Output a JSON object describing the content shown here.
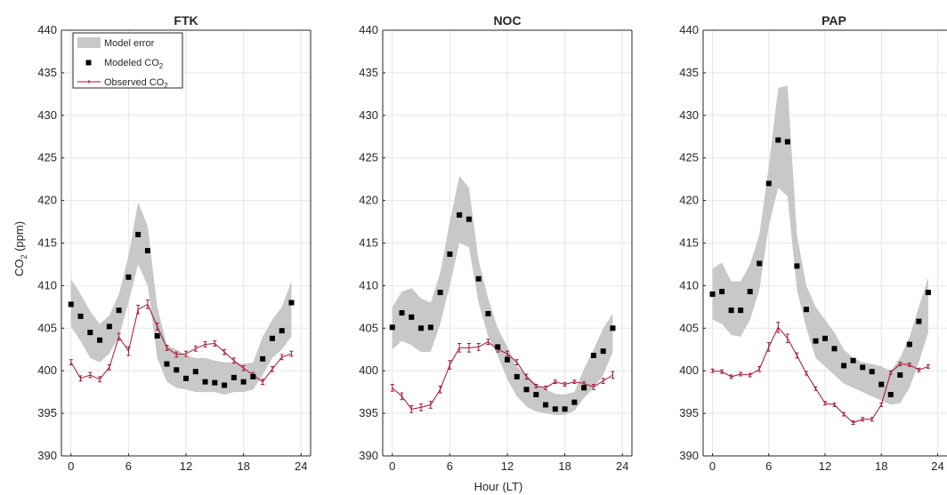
{
  "figure": {
    "ylabel": "CO",
    "ylabel_sub": "2",
    "ylabel_unit": " (ppm)",
    "xlabel": "Hour (LT)"
  },
  "legend": {
    "model_error": "Model error",
    "modeled_prefix": "Modeled CO",
    "modeled_sub": "2",
    "observed_prefix": "Observed CO",
    "observed_sub": "2",
    "placement": "top-left of first panel"
  },
  "colors": {
    "band": "#c8c8c8",
    "modeled": "#000000",
    "observed": "#a2142f",
    "grid": "#e6e6e6",
    "axis": "#262626"
  },
  "chart_data": [
    {
      "type": "line",
      "title": "FTK",
      "xlim": [
        -1,
        25
      ],
      "ylim": [
        390,
        440
      ],
      "xticks": [
        0,
        6,
        12,
        18,
        24
      ],
      "yticks": [
        390,
        395,
        400,
        405,
        410,
        415,
        420,
        425,
        430,
        435,
        440
      ],
      "grid": true,
      "x": [
        0,
        1,
        2,
        3,
        4,
        5,
        6,
        7,
        8,
        9,
        10,
        11,
        12,
        13,
        14,
        15,
        16,
        17,
        18,
        19,
        20,
        21,
        22,
        23
      ],
      "series": [
        {
          "name": "Model error",
          "kind": "band",
          "lower": [
            405.2,
            403.5,
            401.5,
            401.0,
            402.0,
            404.0,
            408.0,
            412.5,
            410.0,
            401.5,
            398.7,
            398.0,
            397.8,
            397.5,
            397.5,
            397.5,
            397.2,
            397.5,
            397.5,
            397.8,
            399.5,
            401.5,
            402.5,
            404.0
          ],
          "upper": [
            410.8,
            409.0,
            407.0,
            405.5,
            406.5,
            409.0,
            413.5,
            419.8,
            417.0,
            407.5,
            403.0,
            402.5,
            401.8,
            401.5,
            401.5,
            401.2,
            401.0,
            401.0,
            400.8,
            401.0,
            404.0,
            406.0,
            407.5,
            410.5
          ]
        },
        {
          "name": "Modeled CO2",
          "kind": "markers",
          "values": [
            407.8,
            406.4,
            404.5,
            403.6,
            405.2,
            407.1,
            411.0,
            416.0,
            414.1,
            404.1,
            400.8,
            400.1,
            399.1,
            399.9,
            398.7,
            398.6,
            398.3,
            399.2,
            398.7,
            399.3,
            401.4,
            403.8,
            404.7,
            408.0
          ]
        },
        {
          "name": "Observed CO2",
          "kind": "line",
          "values": [
            401.0,
            399.1,
            399.5,
            399.0,
            400.4,
            404.0,
            402.3,
            407.2,
            407.8,
            405.2,
            402.7,
            401.9,
            402.0,
            402.6,
            403.1,
            403.2,
            402.2,
            401.2,
            400.3,
            399.5,
            398.7,
            400.2,
            401.6,
            402.0
          ],
          "error": [
            0.3,
            0.3,
            0.3,
            0.3,
            0.3,
            0.4,
            0.5,
            0.5,
            0.5,
            0.4,
            0.3,
            0.3,
            0.3,
            0.3,
            0.3,
            0.3,
            0.3,
            0.3,
            0.3,
            0.3,
            0.3,
            0.3,
            0.3,
            0.3
          ]
        }
      ]
    },
    {
      "type": "line",
      "title": "NOC",
      "xlim": [
        -1,
        25
      ],
      "ylim": [
        390,
        440
      ],
      "xticks": [
        0,
        6,
        12,
        18,
        24
      ],
      "yticks": [
        390,
        395,
        400,
        405,
        410,
        415,
        420,
        425,
        430,
        435,
        440
      ],
      "grid": true,
      "x": [
        0,
        1,
        2,
        3,
        4,
        5,
        6,
        7,
        8,
        9,
        10,
        11,
        12,
        13,
        14,
        15,
        16,
        17,
        18,
        19,
        20,
        21,
        22,
        23
      ],
      "series": [
        {
          "name": "Model error",
          "kind": "band",
          "lower": [
            402.5,
            403.5,
            403.0,
            402.2,
            402.2,
            405.5,
            410.0,
            415.0,
            414.5,
            408.0,
            404.0,
            401.8,
            399.0,
            397.0,
            395.8,
            395.2,
            395.0,
            394.8,
            394.8,
            395.3,
            396.8,
            398.0,
            399.5,
            402.2
          ],
          "upper": [
            407.5,
            409.3,
            409.7,
            408.5,
            408.0,
            411.5,
            417.5,
            422.9,
            421.5,
            413.0,
            408.5,
            405.0,
            402.8,
            400.5,
            399.5,
            398.5,
            397.8,
            397.3,
            397.2,
            397.5,
            400.2,
            402.5,
            405.0,
            406.7
          ]
        },
        {
          "name": "Modeled CO2",
          "kind": "markers",
          "values": [
            405.1,
            406.8,
            406.3,
            405.0,
            405.1,
            409.2,
            413.7,
            418.3,
            417.8,
            410.8,
            406.7,
            402.8,
            401.3,
            399.3,
            397.8,
            397.2,
            396.0,
            395.5,
            395.5,
            396.3,
            398.0,
            401.8,
            402.3,
            405.0
          ]
        },
        {
          "name": "Observed CO2",
          "kind": "line",
          "values": [
            398.0,
            397.0,
            395.5,
            395.7,
            396.0,
            397.8,
            400.7,
            402.7,
            402.7,
            402.8,
            403.4,
            402.5,
            402.0,
            401.0,
            399.3,
            398.2,
            398.0,
            398.7,
            398.4,
            398.7,
            398.5,
            398.1,
            398.8,
            399.5
          ],
          "error": [
            0.4,
            0.4,
            0.4,
            0.4,
            0.4,
            0.4,
            0.5,
            0.5,
            0.5,
            0.4,
            0.3,
            0.3,
            0.3,
            0.3,
            0.3,
            0.2,
            0.2,
            0.2,
            0.2,
            0.2,
            0.2,
            0.3,
            0.3,
            0.4
          ]
        }
      ]
    },
    {
      "type": "line",
      "title": "PAP",
      "xlim": [
        -1,
        25
      ],
      "ylim": [
        390,
        440
      ],
      "xticks": [
        0,
        6,
        12,
        18,
        24
      ],
      "yticks": [
        390,
        395,
        400,
        405,
        410,
        415,
        420,
        425,
        430,
        435,
        440
      ],
      "grid": true,
      "x": [
        0,
        1,
        2,
        3,
        4,
        5,
        6,
        7,
        8,
        9,
        10,
        11,
        12,
        13,
        14,
        15,
        16,
        17,
        18,
        19,
        20,
        21,
        22,
        23
      ],
      "series": [
        {
          "name": "Model error",
          "kind": "band",
          "lower": [
            406.0,
            405.5,
            404.2,
            404.0,
            406.0,
            409.5,
            417.0,
            421.5,
            420.5,
            409.5,
            405.0,
            401.5,
            400.5,
            399.5,
            398.5,
            398.0,
            397.5,
            397.0,
            396.5,
            396.0,
            396.2,
            398.0,
            401.0,
            404.5
          ],
          "upper": [
            412.0,
            412.7,
            410.5,
            410.5,
            412.5,
            416.0,
            424.0,
            433.2,
            433.5,
            416.0,
            410.0,
            407.5,
            406.0,
            404.5,
            402.5,
            401.5,
            401.0,
            400.8,
            400.5,
            400.0,
            401.5,
            404.0,
            407.5,
            411.0
          ]
        },
        {
          "name": "Modeled CO2",
          "kind": "markers",
          "values": [
            409.0,
            409.3,
            407.1,
            407.1,
            409.3,
            412.6,
            422.0,
            427.1,
            426.9,
            412.3,
            407.2,
            403.5,
            403.8,
            402.6,
            400.6,
            401.2,
            400.4,
            399.9,
            398.4,
            397.2,
            399.5,
            403.1,
            405.8,
            409.2
          ]
        },
        {
          "name": "Observed CO2",
          "kind": "line",
          "values": [
            400.0,
            399.9,
            399.3,
            399.6,
            399.5,
            400.2,
            402.8,
            405.1,
            403.8,
            401.8,
            399.7,
            397.9,
            396.2,
            396.0,
            394.9,
            393.9,
            394.3,
            394.3,
            396.0,
            399.8,
            400.8,
            400.7,
            400.1,
            400.5
          ],
          "error": [
            0.2,
            0.2,
            0.2,
            0.2,
            0.2,
            0.3,
            0.5,
            0.6,
            0.5,
            0.3,
            0.2,
            0.2,
            0.2,
            0.2,
            0.2,
            0.2,
            0.2,
            0.2,
            0.2,
            0.2,
            0.2,
            0.2,
            0.2,
            0.2
          ]
        }
      ]
    }
  ]
}
